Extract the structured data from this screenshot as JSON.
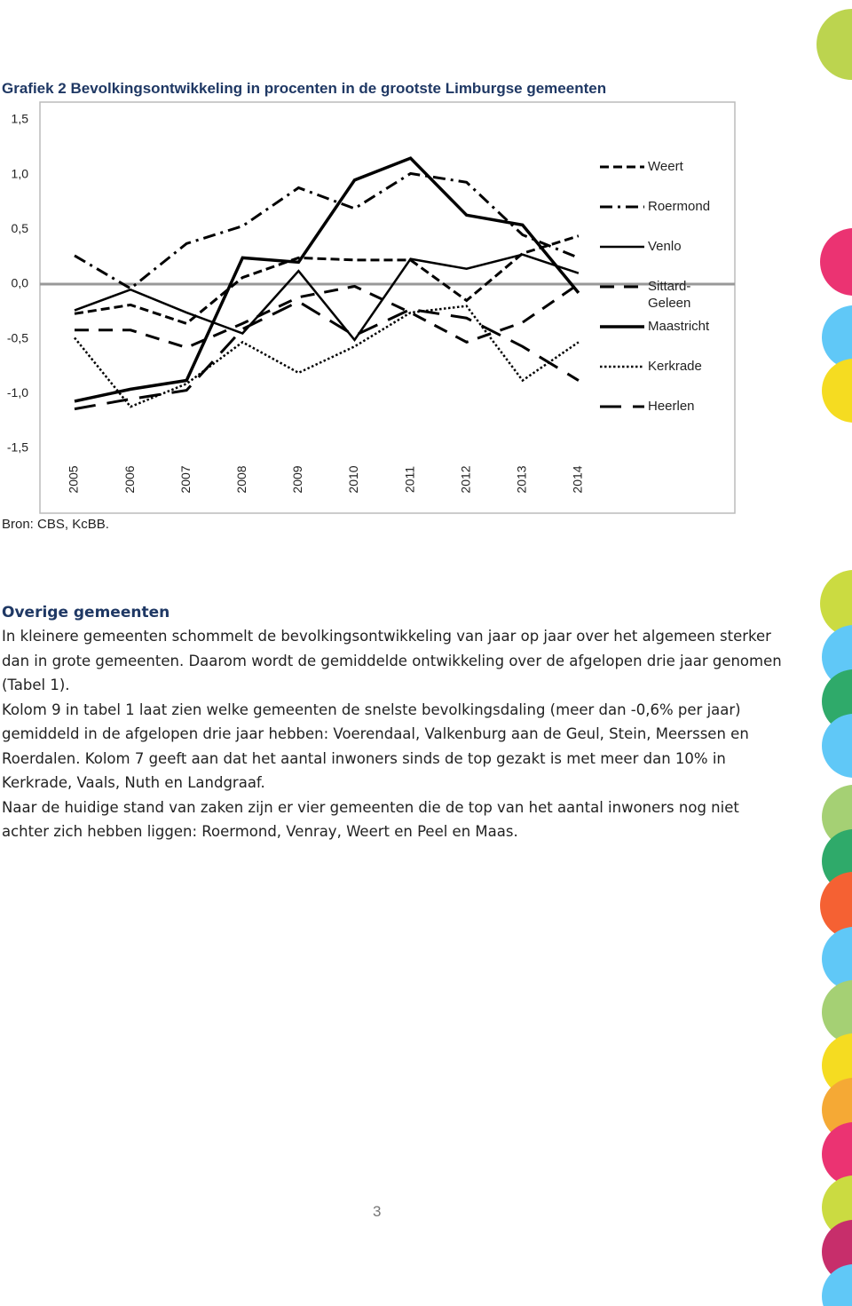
{
  "chart_data": {
    "type": "line",
    "title": "Grafiek 2 Bevolkingsontwikkeling in procenten in de grootste Limburgse gemeenten",
    "categories": [
      "2005",
      "2006",
      "2007",
      "2008",
      "2009",
      "2010",
      "2011",
      "2012",
      "2013",
      "2014"
    ],
    "ylim": [
      -1.5,
      1.5
    ],
    "yticks": [
      {
        "value": 1.5,
        "label": "1,5"
      },
      {
        "value": 1.0,
        "label": "1,0"
      },
      {
        "value": 0.5,
        "label": "0,5"
      },
      {
        "value": 0,
        "label": "0,0"
      },
      {
        "value": -0.5,
        "label": "-0,5"
      },
      {
        "value": -1.0,
        "label": "-1,0"
      },
      {
        "value": -1.5,
        "label": "-1,5"
      }
    ],
    "grid": false,
    "legend": "right",
    "series": [
      {
        "name": "Weert",
        "color": "#000000",
        "values": [
          -0.27,
          -0.19,
          -0.36,
          0.06,
          0.24,
          0.22,
          0.22,
          -0.15,
          0.28,
          0.44
        ]
      },
      {
        "name": "Roermond",
        "color": "#000000",
        "values": [
          0.26,
          -0.04,
          0.37,
          0.53,
          0.88,
          0.69,
          1.01,
          0.93,
          0.45,
          0.24
        ]
      },
      {
        "name": "Venlo",
        "color": "#000000",
        "values": [
          -0.24,
          -0.05,
          -0.26,
          -0.45,
          0.12,
          -0.51,
          0.23,
          0.14,
          0.27,
          0.1
        ]
      },
      {
        "name": "Sittard-Geleen",
        "color": "#000000",
        "values": [
          -0.42,
          -0.42,
          -0.58,
          -0.36,
          -0.12,
          -0.02,
          -0.26,
          -0.53,
          -0.35,
          0
        ]
      },
      {
        "name": "Maastricht",
        "color": "#000000",
        "values": [
          -1.07,
          -0.96,
          -0.88,
          0.24,
          0.2,
          0.95,
          1.15,
          0.63,
          0.54,
          -0.08
        ]
      },
      {
        "name": "Kerkrade",
        "color": "#000000",
        "values": [
          -0.49,
          -1.12,
          -0.91,
          -0.53,
          -0.81,
          -0.57,
          -0.26,
          -0.2,
          -0.88,
          -0.53
        ]
      },
      {
        "name": "Heerlen",
        "color": "#000000",
        "values": [
          -1.14,
          -1.05,
          -0.97,
          -0.41,
          -0.16,
          -0.47,
          -0.23,
          -0.31,
          -0.57,
          -0.88
        ]
      }
    ]
  },
  "source": "Bron: CBS, KcBB.",
  "section": {
    "heading": "Overige gemeenten",
    "paragraphs": [
      "In kleinere gemeenten schommelt de bevolkingsontwikkeling van jaar op jaar over het algemeen sterker dan in grote gemeenten. Daarom wordt de gemiddelde ontwikkeling over de afgelopen drie jaar genomen (Tabel 1).",
      "Kolom 9 in tabel 1 laat zien welke gemeenten de snelste bevolkingsdaling (meer dan -0,6% per jaar) gemiddeld in de afgelopen drie jaar hebben: Voerendaal, Valkenburg aan de Geul, Stein, Meerssen en Roerdalen. Kolom 7 geeft aan dat het aantal inwoners sinds de top gezakt is met meer dan 10% in Kerkrade, Vaals, Nuth en Landgraaf.",
      "Naar de huidige stand van zaken zijn er vier gemeenten die de top van het aantal inwoners nog niet achter zich hebben liggen: Roermond, Venray, Weert en Peel en Maas."
    ]
  },
  "page_number": "3"
}
